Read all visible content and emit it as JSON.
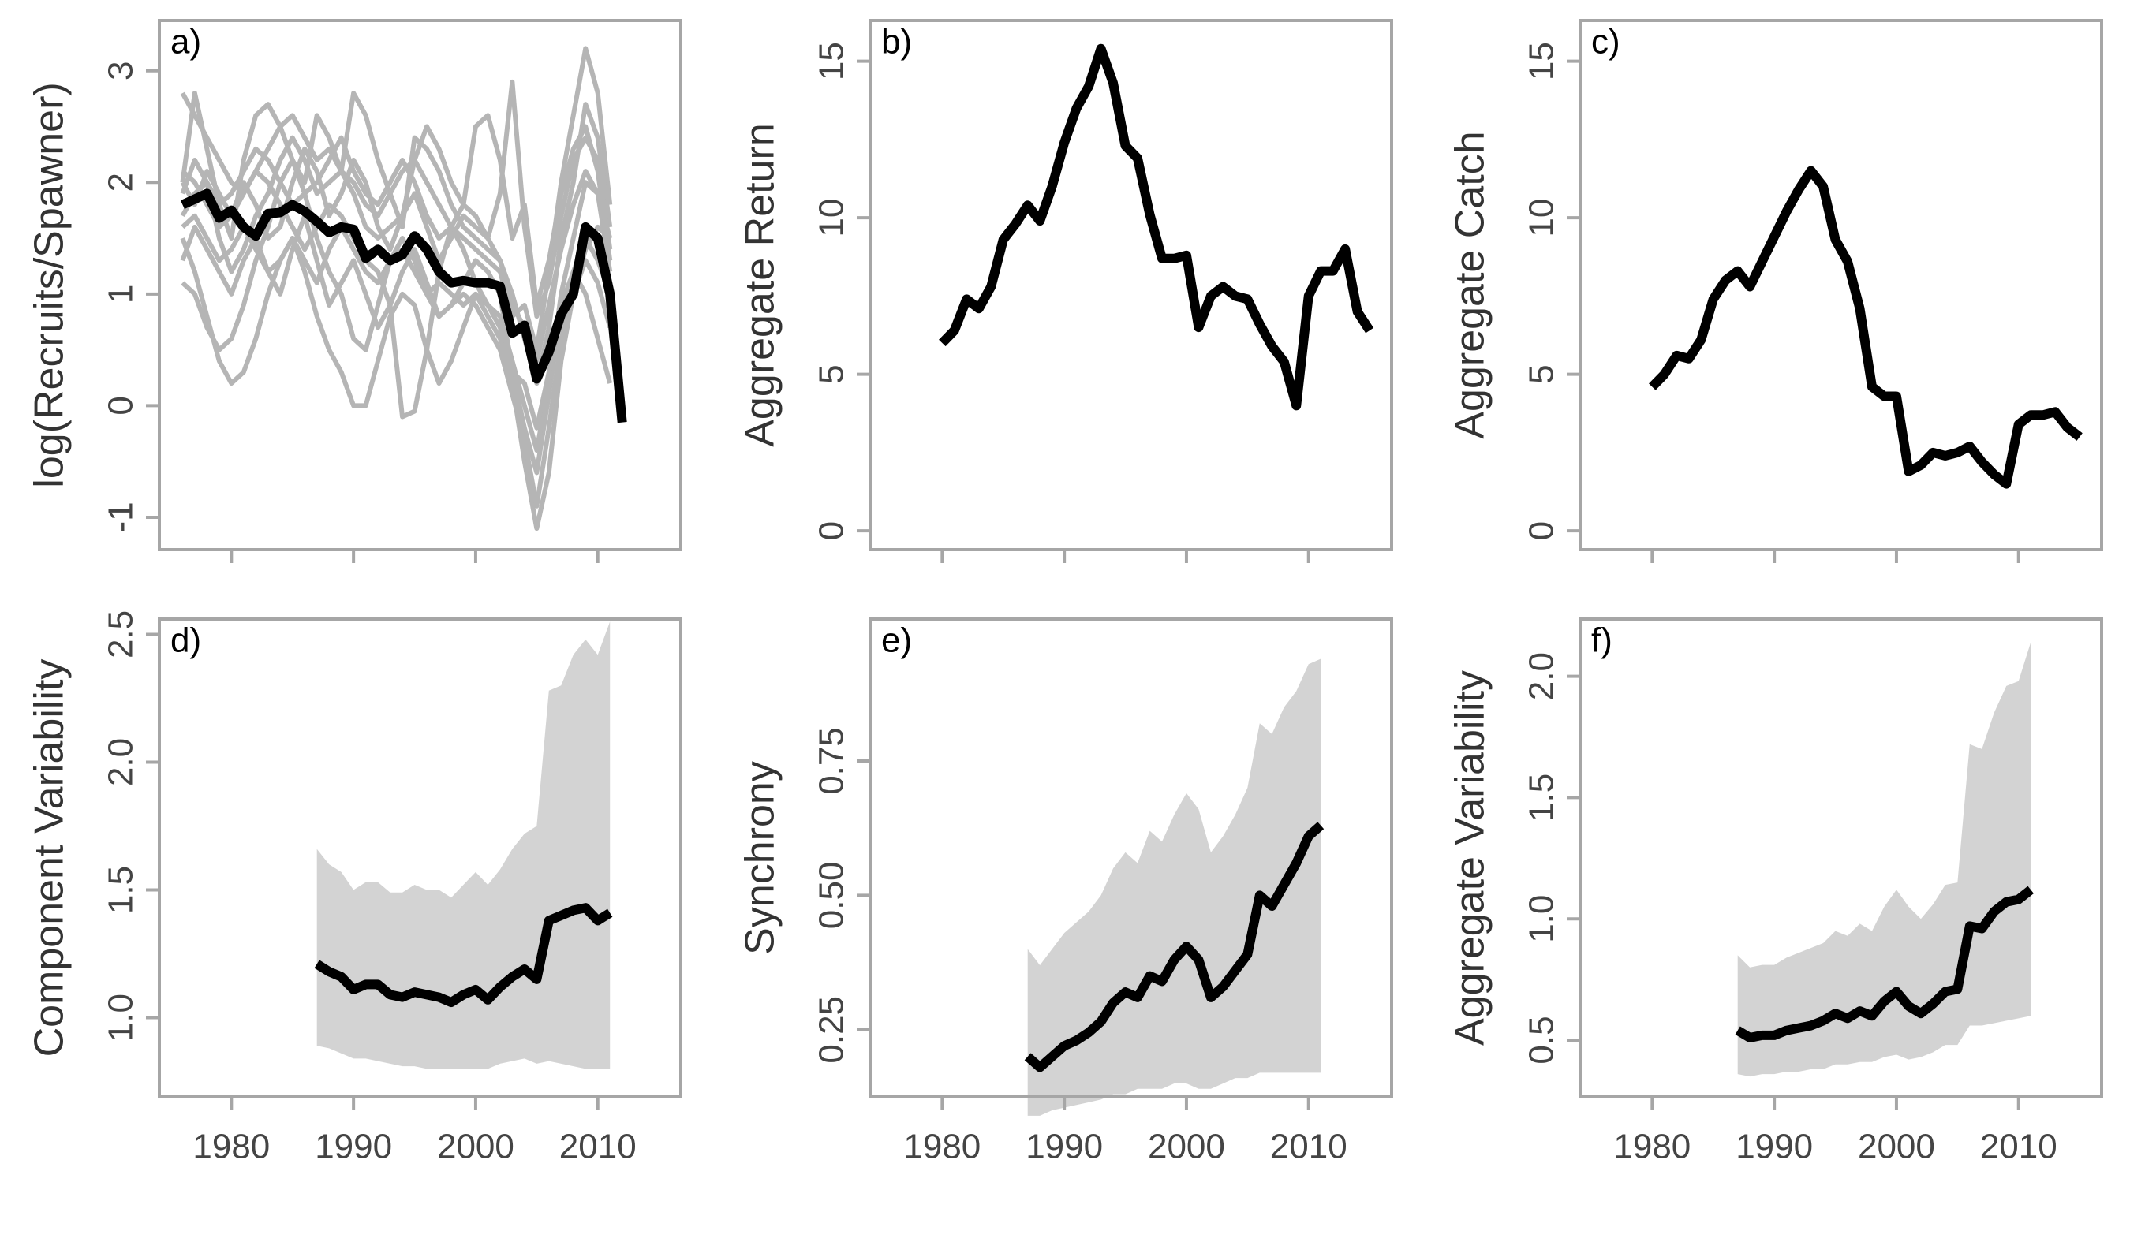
{
  "chart_data": [
    {
      "type": "line",
      "panel_label": "a)",
      "y_label": "log(Recruits/Spawner)",
      "x": [
        1976,
        1977,
        1978,
        1979,
        1980,
        1981,
        1982,
        1983,
        1984,
        1985,
        1986,
        1987,
        1988,
        1989,
        1990,
        1991,
        1992,
        1993,
        1994,
        1995,
        1996,
        1997,
        1998,
        1999,
        2000,
        2001,
        2002,
        2003,
        2004,
        2005,
        2006,
        2007,
        2008,
        2009,
        2010,
        2011,
        2012
      ],
      "xlim": [
        1974.1,
        2016.8
      ],
      "xticks": [
        1980,
        1990,
        2000,
        2010
      ],
      "xtick_labels": false,
      "ylim": [
        -1.29,
        3.45
      ],
      "yticks": [
        -1,
        0,
        1,
        2,
        3
      ],
      "series": [
        {
          "color": "#b5b5b5",
          "values": [
            2.8,
            2.6,
            2.4,
            2.2,
            2.0,
            1.9,
            2.1,
            2.3,
            2.5,
            2.6,
            2.4,
            2.2,
            2.3,
            2.1,
            2.0,
            1.8,
            1.7,
            1.9,
            2.1,
            2.2,
            2.0,
            1.8,
            1.6,
            1.5,
            1.4,
            1.3,
            1.2,
            0.8,
            0.9,
            0.5,
            1.2,
            2.0,
            2.6,
            3.2,
            2.8,
            1.8,
            null
          ]
        },
        {
          "color": "#b5b5b5",
          "values": [
            2.0,
            2.8,
            2.3,
            1.8,
            1.5,
            2.2,
            2.6,
            2.7,
            2.5,
            2.2,
            2.0,
            2.6,
            2.4,
            2.1,
            2.8,
            2.6,
            2.2,
            1.9,
            1.6,
            2.4,
            2.3,
            2.1,
            1.8,
            1.6,
            1.5,
            1.4,
            1.3,
            1.0,
            0.6,
            0.2,
            0.7,
            1.5,
            2.0,
            2.7,
            2.4,
            1.6,
            null
          ]
        },
        {
          "color": "#b5b5b5",
          "values": [
            1.1,
            1.0,
            0.7,
            0.5,
            0.6,
            0.9,
            1.3,
            1.6,
            2.0,
            2.2,
            1.9,
            1.5,
            1.2,
            1.0,
            0.6,
            0.5,
            0.9,
            1.3,
            1.5,
            1.3,
            1.0,
            0.8,
            0.9,
            1.1,
            1.3,
            1.2,
            1.0,
            0.3,
            -0.2,
            -0.6,
            0.1,
            0.9,
            1.2,
            1.0,
            0.6,
            0.2,
            null
          ]
        },
        {
          "color": "#b5b5b5",
          "values": [
            1.5,
            1.2,
            0.8,
            0.4,
            0.2,
            0.3,
            0.6,
            1.0,
            1.3,
            1.5,
            1.2,
            0.8,
            0.5,
            0.3,
            0.0,
            0.0,
            0.4,
            0.8,
            1.0,
            0.9,
            0.5,
            0.2,
            0.4,
            0.7,
            1.0,
            0.9,
            0.7,
            0.2,
            -0.5,
            -1.1,
            -0.6,
            0.4,
            1.0,
            1.4,
            1.6,
            1.5,
            null
          ]
        },
        {
          "color": "#b5b5b5",
          "values": [
            2.1,
            2.0,
            1.8,
            1.6,
            1.7,
            1.9,
            2.1,
            2.0,
            1.8,
            1.6,
            1.4,
            1.6,
            1.8,
            1.7,
            1.5,
            1.3,
            1.2,
            0.9,
            -0.1,
            -0.05,
            0.5,
            1.2,
            1.6,
            1.4,
            1.1,
            0.9,
            0.8,
            0.4,
            0.0,
            -0.4,
            0.2,
            1.0,
            1.5,
            2.0,
            1.9,
            1.2,
            null
          ]
        },
        {
          "color": "#b5b5b5",
          "values": [
            1.7,
            1.9,
            2.0,
            1.5,
            1.2,
            1.4,
            1.7,
            1.9,
            2.2,
            2.4,
            2.2,
            1.9,
            2.0,
            2.1,
            1.9,
            1.6,
            1.5,
            1.6,
            1.7,
            2.2,
            2.5,
            2.3,
            2.0,
            1.8,
            2.5,
            2.6,
            2.2,
            1.5,
            1.8,
            0.9,
            1.3,
            1.9,
            2.3,
            2.5,
            2.1,
            1.3,
            null
          ]
        },
        {
          "color": "#b5b5b5",
          "values": [
            1.3,
            1.6,
            1.4,
            1.2,
            1.0,
            1.3,
            1.5,
            1.2,
            1.0,
            1.4,
            1.7,
            1.3,
            0.9,
            1.1,
            1.3,
            1.0,
            0.7,
            0.9,
            1.2,
            1.4,
            1.1,
            0.8,
            0.9,
            1.0,
            0.9,
            0.7,
            0.5,
            0.1,
            -0.3,
            -0.9,
            -0.2,
            0.6,
            1.0,
            1.3,
            1.1,
            0.7,
            null
          ]
        },
        {
          "color": "#b5b5b5",
          "values": [
            2.0,
            1.8,
            2.1,
            1.9,
            1.7,
            2.0,
            1.8,
            1.5,
            1.6,
            2.0,
            2.3,
            2.1,
            1.7,
            1.9,
            2.2,
            2.0,
            1.6,
            1.4,
            1.7,
            1.9,
            1.6,
            1.3,
            1.5,
            1.7,
            1.6,
            1.5,
            1.9,
            2.9,
            1.6,
            0.8,
            1.1,
            1.7,
            2.2,
            2.4,
            2.2,
            1.4,
            null
          ]
        },
        {
          "color": "#b5b5b5",
          "values": [
            1.6,
            1.7,
            1.5,
            1.3,
            1.4,
            1.6,
            1.4,
            1.2,
            1.3,
            1.5,
            1.3,
            1.1,
            1.4,
            1.6,
            1.4,
            1.2,
            1.1,
            1.3,
            1.4,
            1.2,
            1.0,
            1.1,
            1.0,
            0.9,
            1.0,
            0.8,
            0.6,
            0.3,
            0.2,
            -0.2,
            0.3,
            0.8,
            1.2,
            1.5,
            1.3,
            1.0,
            null
          ]
        },
        {
          "color": "#b5b5b5",
          "values": [
            1.9,
            2.2,
            2.0,
            1.8,
            1.9,
            2.1,
            2.3,
            2.2,
            2.0,
            1.8,
            1.9,
            2.0,
            2.2,
            2.4,
            2.1,
            1.9,
            1.8,
            2.0,
            2.2,
            2.0,
            1.7,
            1.5,
            1.6,
            1.8,
            1.7,
            1.5,
            1.3,
            0.9,
            0.7,
            0.4,
            0.9,
            1.4,
            1.8,
            2.1,
            1.9,
            1.5,
            null
          ]
        },
        {
          "color": "#000000",
          "values": [
            1.8,
            1.85,
            1.9,
            1.68,
            1.75,
            1.6,
            1.52,
            1.72,
            1.73,
            1.8,
            1.74,
            1.65,
            1.55,
            1.6,
            1.58,
            1.32,
            1.4,
            1.3,
            1.35,
            1.52,
            1.4,
            1.2,
            1.1,
            1.12,
            1.1,
            1.1,
            1.07,
            0.65,
            0.72,
            0.24,
            0.48,
            0.82,
            1.0,
            1.6,
            1.5,
            1.0,
            -0.15
          ]
        }
      ]
    },
    {
      "type": "line",
      "panel_label": "b)",
      "y_label": "Aggregate Return",
      "x": [
        1980,
        1981,
        1982,
        1983,
        1984,
        1985,
        1986,
        1987,
        1988,
        1989,
        1990,
        1991,
        1992,
        1993,
        1994,
        1995,
        1996,
        1997,
        1998,
        1999,
        2000,
        2001,
        2002,
        2003,
        2004,
        2005,
        2006,
        2007,
        2008,
        2009,
        2010,
        2011,
        2012,
        2013,
        2014,
        2015
      ],
      "xlim": [
        1974.1,
        2016.8
      ],
      "xticks": [
        1980,
        1990,
        2000,
        2010
      ],
      "xtick_labels": false,
      "ylim": [
        -0.6,
        16.3
      ],
      "yticks": [
        0,
        5,
        10,
        15
      ],
      "series": [
        {
          "color": "#000000",
          "values": [
            6.0,
            6.4,
            7.4,
            7.1,
            7.8,
            9.3,
            9.8,
            10.4,
            9.9,
            11.0,
            12.4,
            13.5,
            14.2,
            15.4,
            14.3,
            12.3,
            11.9,
            10.1,
            8.7,
            8.7,
            8.8,
            6.5,
            7.5,
            7.8,
            7.5,
            7.4,
            6.6,
            5.9,
            5.4,
            4.0,
            7.5,
            8.3,
            8.3,
            9.0,
            7.0,
            6.4
          ]
        }
      ]
    },
    {
      "type": "line",
      "panel_label": "c)",
      "y_label": "Aggregate Catch",
      "x": [
        1980,
        1981,
        1982,
        1983,
        1984,
        1985,
        1986,
        1987,
        1988,
        1989,
        1990,
        1991,
        1992,
        1993,
        1994,
        1995,
        1996,
        1997,
        1998,
        1999,
        2000,
        2001,
        2002,
        2003,
        2004,
        2005,
        2006,
        2007,
        2008,
        2009,
        2010,
        2011,
        2012,
        2013,
        2014,
        2015
      ],
      "xlim": [
        1974.1,
        2016.8
      ],
      "xticks": [
        1980,
        1990,
        2000,
        2010
      ],
      "xtick_labels": false,
      "ylim": [
        -0.6,
        16.3
      ],
      "yticks": [
        0,
        5,
        10,
        15
      ],
      "series": [
        {
          "color": "#000000",
          "values": [
            4.6,
            5.0,
            5.6,
            5.5,
            6.1,
            7.4,
            8.0,
            8.3,
            7.8,
            8.6,
            9.4,
            10.2,
            10.9,
            11.5,
            11.0,
            9.3,
            8.6,
            7.1,
            4.6,
            4.3,
            4.3,
            1.9,
            2.1,
            2.5,
            2.4,
            2.5,
            2.7,
            2.2,
            1.8,
            1.5,
            3.4,
            3.7,
            3.7,
            3.8,
            3.3,
            3.0
          ]
        }
      ]
    },
    {
      "type": "line",
      "panel_label": "d)",
      "y_label": "Component Variability",
      "x": [
        1987,
        1988,
        1989,
        1990,
        1991,
        1992,
        1993,
        1994,
        1995,
        1996,
        1997,
        1998,
        1999,
        2000,
        2001,
        2002,
        2003,
        2004,
        2005,
        2006,
        2007,
        2008,
        2009,
        2010,
        2011
      ],
      "xlim": [
        1974.1,
        2016.8
      ],
      "xticks": [
        1980,
        1990,
        2000,
        2010
      ],
      "xtick_labels": true,
      "ylim": [
        0.69,
        2.56
      ],
      "yticks": [
        {
          "value": 1,
          "label": "1.0"
        },
        1.5,
        {
          "value": 2,
          "label": "2.0"
        },
        2.5
      ],
      "series": [
        {
          "color": "#d3d3d3",
          "lower": [
            0.89,
            0.88,
            0.86,
            0.84,
            0.84,
            0.83,
            0.82,
            0.81,
            0.81,
            0.8,
            0.8,
            0.8,
            0.8,
            0.8,
            0.8,
            0.82,
            0.83,
            0.84,
            0.82,
            0.83,
            0.82,
            0.81,
            0.8,
            0.8,
            0.8
          ],
          "upper": [
            1.66,
            1.6,
            1.57,
            1.5,
            1.53,
            1.53,
            1.49,
            1.49,
            1.52,
            1.5,
            1.5,
            1.47,
            1.52,
            1.57,
            1.52,
            1.58,
            1.66,
            1.72,
            1.75,
            2.28,
            2.3,
            2.42,
            2.48,
            2.42,
            2.55
          ]
        },
        {
          "color": "#000000",
          "values": [
            1.21,
            1.18,
            1.16,
            1.11,
            1.13,
            1.13,
            1.09,
            1.08,
            1.1,
            1.09,
            1.08,
            1.06,
            1.09,
            1.11,
            1.07,
            1.12,
            1.16,
            1.19,
            1.15,
            1.38,
            1.4,
            1.42,
            1.43,
            1.38,
            1.41
          ]
        }
      ]
    },
    {
      "type": "line",
      "panel_label": "e)",
      "y_label": "Synchrony",
      "x": [
        1987,
        1988,
        1989,
        1990,
        1991,
        1992,
        1993,
        1994,
        1995,
        1996,
        1997,
        1998,
        1999,
        2000,
        2001,
        2002,
        2003,
        2004,
        2005,
        2006,
        2007,
        2008,
        2009,
        2010,
        2011
      ],
      "xlim": [
        1974.1,
        2016.8
      ],
      "xticks": [
        1980,
        1990,
        2000,
        2010
      ],
      "xtick_labels": true,
      "ylim": [
        0.125,
        1.014
      ],
      "yticks": [
        0.25,
        {
          "value": 0.5,
          "label": "0.50"
        },
        0.75
      ],
      "series": [
        {
          "color": "#d3d3d3",
          "lower": [
            0.09,
            0.09,
            0.1,
            0.105,
            0.11,
            0.115,
            0.12,
            0.13,
            0.13,
            0.14,
            0.14,
            0.14,
            0.15,
            0.15,
            0.14,
            0.14,
            0.15,
            0.16,
            0.16,
            0.17,
            0.17,
            0.17,
            0.17,
            0.17,
            0.17
          ],
          "upper": [
            0.4,
            0.37,
            0.4,
            0.43,
            0.45,
            0.47,
            0.5,
            0.55,
            0.58,
            0.56,
            0.62,
            0.6,
            0.65,
            0.69,
            0.66,
            0.58,
            0.61,
            0.65,
            0.7,
            0.82,
            0.8,
            0.85,
            0.88,
            0.93,
            0.94
          ]
        },
        {
          "color": "#000000",
          "values": [
            0.2,
            0.18,
            0.2,
            0.22,
            0.23,
            0.245,
            0.265,
            0.3,
            0.32,
            0.31,
            0.35,
            0.34,
            0.38,
            0.405,
            0.38,
            0.31,
            0.33,
            0.36,
            0.39,
            0.5,
            0.48,
            0.52,
            0.56,
            0.61,
            0.63
          ]
        }
      ]
    },
    {
      "type": "line",
      "panel_label": "f)",
      "y_label": "Aggregate Variability",
      "x": [
        1987,
        1988,
        1989,
        1990,
        1991,
        1992,
        1993,
        1994,
        1995,
        1996,
        1997,
        1998,
        1999,
        2000,
        2001,
        2002,
        2003,
        2004,
        2005,
        2006,
        2007,
        2008,
        2009,
        2010,
        2011
      ],
      "xlim": [
        1974.1,
        2016.8
      ],
      "xticks": [
        1980,
        1990,
        2000,
        2010
      ],
      "xtick_labels": true,
      "ylim": [
        0.266,
        2.236
      ],
      "yticks": [
        0.5,
        {
          "value": 1,
          "label": "1.0"
        },
        1.5,
        {
          "value": 2,
          "label": "2.0"
        }
      ],
      "series": [
        {
          "color": "#d3d3d3",
          "lower": [
            0.36,
            0.35,
            0.36,
            0.36,
            0.37,
            0.37,
            0.38,
            0.38,
            0.4,
            0.4,
            0.41,
            0.41,
            0.43,
            0.44,
            0.42,
            0.43,
            0.45,
            0.48,
            0.48,
            0.56,
            0.56,
            0.57,
            0.58,
            0.59,
            0.6
          ],
          "upper": [
            0.85,
            0.8,
            0.81,
            0.81,
            0.84,
            0.86,
            0.88,
            0.9,
            0.95,
            0.93,
            0.98,
            0.95,
            1.05,
            1.12,
            1.05,
            1.0,
            1.06,
            1.14,
            1.15,
            1.72,
            1.7,
            1.85,
            1.96,
            1.98,
            2.14
          ]
        },
        {
          "color": "#000000",
          "values": [
            0.54,
            0.51,
            0.52,
            0.52,
            0.54,
            0.55,
            0.56,
            0.58,
            0.61,
            0.59,
            0.62,
            0.6,
            0.66,
            0.7,
            0.64,
            0.61,
            0.65,
            0.7,
            0.71,
            0.97,
            0.96,
            1.03,
            1.07,
            1.08,
            1.12
          ]
        }
      ]
    }
  ]
}
